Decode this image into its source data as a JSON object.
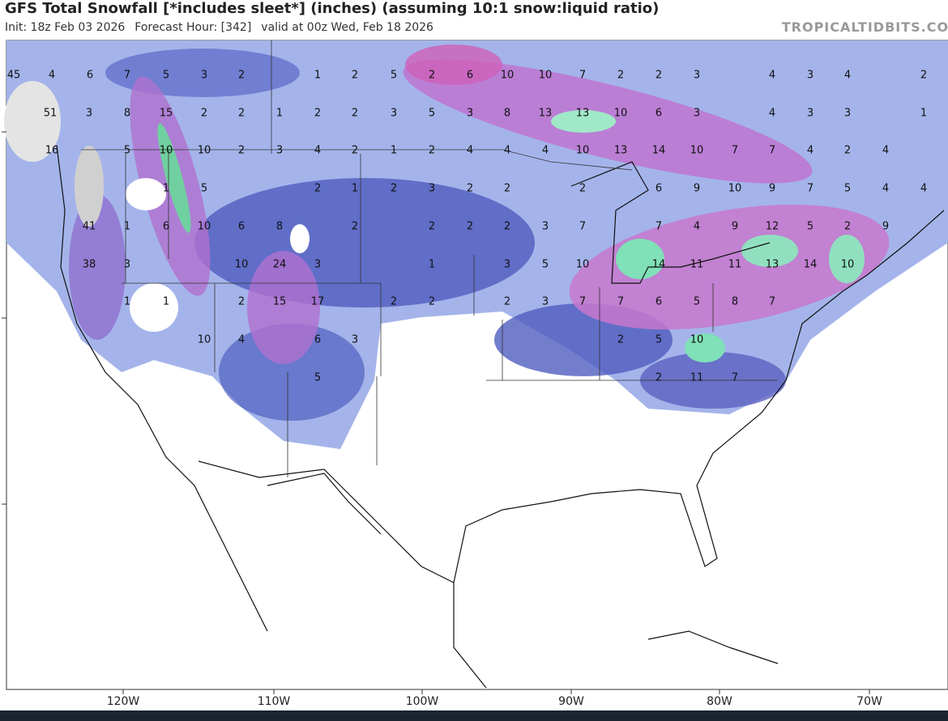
{
  "header": {
    "title": "GFS Total Snowfall [*includes sleet*] (inches) (assuming 10:1 snow:liquid ratio)",
    "init": "Init: 18z Feb 03 2026",
    "forecast_hour": "Forecast Hour: [342]",
    "valid": "valid at 00z Wed, Feb 18 2026",
    "watermark": "TROPICALTIDBITS.COM"
  },
  "longitude_labels": [
    "120W",
    "110W",
    "100W",
    "90W",
    "80W",
    "70W"
  ],
  "map_labels": [
    45,
    4,
    6,
    7,
    5,
    3,
    2,
    1,
    2,
    5,
    2,
    6,
    10,
    10,
    7,
    2,
    2,
    3,
    4,
    3,
    4,
    2,
    51,
    3,
    8,
    15,
    2,
    2,
    1,
    2,
    2,
    3,
    5,
    3,
    8,
    13,
    13,
    10,
    6,
    3,
    4,
    3,
    3,
    1,
    16,
    5,
    10,
    10,
    2,
    3,
    4,
    2,
    1,
    2,
    4,
    4,
    4,
    10,
    13,
    14,
    10,
    7,
    7,
    4,
    2,
    4,
    1,
    5,
    2,
    1,
    2,
    3,
    2,
    2,
    2,
    6,
    9,
    10,
    9,
    7,
    5,
    4,
    4,
    41,
    1,
    6,
    10,
    6,
    8,
    2,
    2,
    2,
    2,
    3,
    7,
    7,
    4,
    9,
    12,
    5,
    2,
    9,
    38,
    3,
    10,
    24,
    3,
    1,
    3,
    5,
    10,
    14,
    11,
    11,
    13,
    14,
    10,
    1,
    1,
    2,
    15,
    17,
    2,
    2,
    2,
    3,
    7,
    7,
    6,
    5,
    8,
    7,
    10,
    4,
    6,
    3,
    2,
    5,
    10,
    5,
    2,
    11,
    7
  ]
}
